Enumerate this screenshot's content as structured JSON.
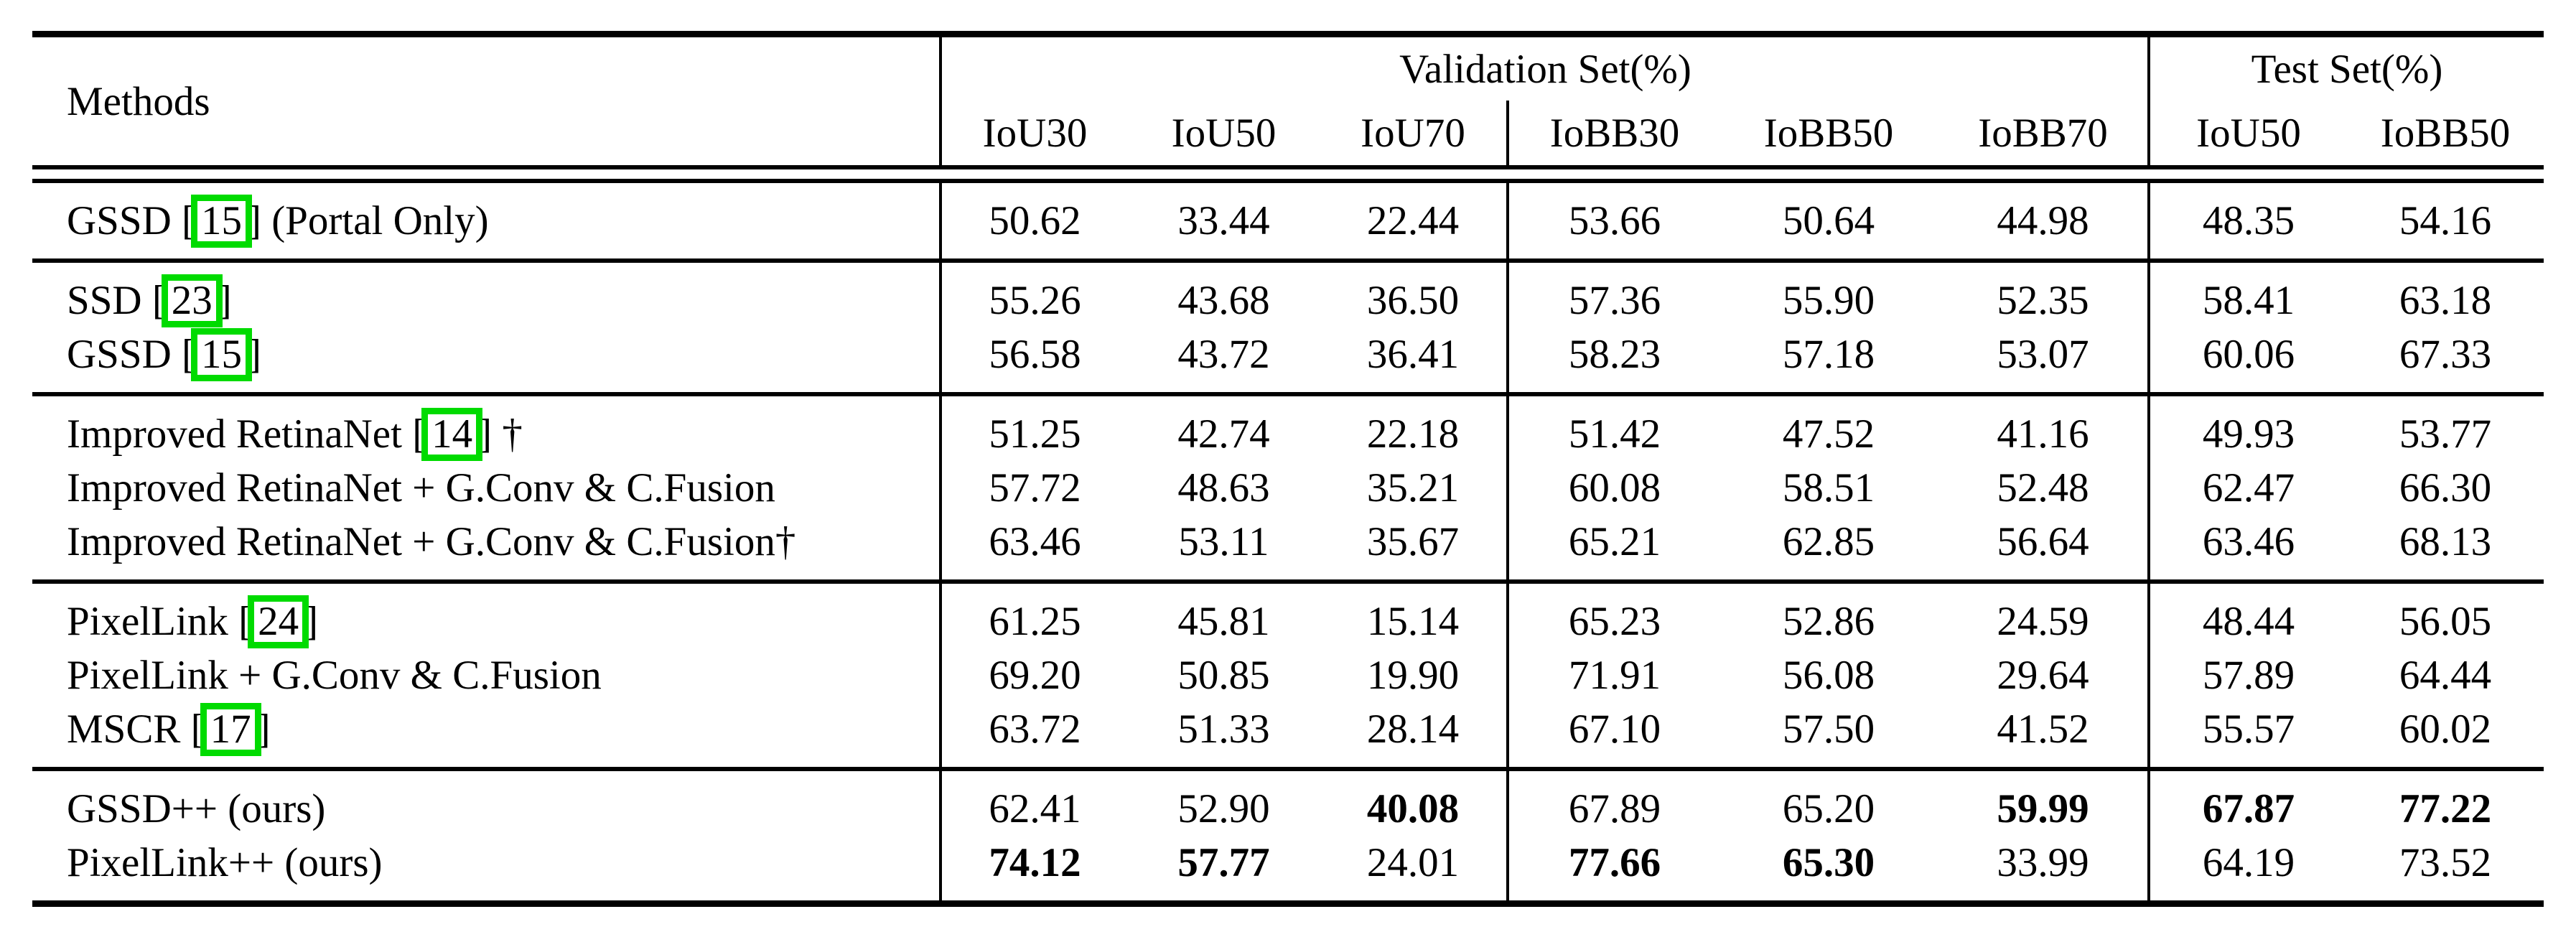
{
  "table": {
    "citation_box_color": "#00DB00",
    "header": {
      "methods_label": "Methods",
      "validation_title": "Validation Set(%)",
      "test_title": "Test Set(%)",
      "val_columns": [
        "IoU30",
        "IoU50",
        "IoU70",
        "IoBB30",
        "IoBB50",
        "IoBB70"
      ],
      "test_columns": [
        "IoU50",
        "IoBB50"
      ]
    },
    "groups": [
      {
        "rows": [
          {
            "label_pre": "GSSD [",
            "cite": "15",
            "label_post": "] (Portal Only)",
            "values": [
              "50.62",
              "33.44",
              "22.44",
              "53.66",
              "50.64",
              "44.98",
              "48.35",
              "54.16"
            ]
          }
        ]
      },
      {
        "rows": [
          {
            "label_pre": "SSD [",
            "cite": "23",
            "label_post": "]",
            "values": [
              "55.26",
              "43.68",
              "36.50",
              "57.36",
              "55.90",
              "52.35",
              "58.41",
              "63.18"
            ]
          },
          {
            "label_pre": "GSSD [",
            "cite": "15",
            "label_post": "]",
            "values": [
              "56.58",
              "43.72",
              "36.41",
              "58.23",
              "57.18",
              "53.07",
              "60.06",
              "67.33"
            ]
          }
        ]
      },
      {
        "rows": [
          {
            "label_pre": "Improved RetinaNet [",
            "cite": "14",
            "label_post": "] †",
            "values": [
              "51.25",
              "42.74",
              "22.18",
              "51.42",
              "47.52",
              "41.16",
              "49.93",
              "53.77"
            ]
          },
          {
            "label_pre": "Improved RetinaNet + G.Conv & C.Fusion",
            "cite": "",
            "label_post": "",
            "values": [
              "57.72",
              "48.63",
              "35.21",
              "60.08",
              "58.51",
              "52.48",
              "62.47",
              "66.30"
            ]
          },
          {
            "label_pre": "Improved RetinaNet + G.Conv & C.Fusion†",
            "cite": "",
            "label_post": "",
            "values": [
              "63.46",
              "53.11",
              "35.67",
              "65.21",
              "62.85",
              "56.64",
              "63.46",
              "68.13"
            ]
          }
        ]
      },
      {
        "rows": [
          {
            "label_pre": "PixelLink [",
            "cite": "24",
            "label_post": "]",
            "values": [
              "61.25",
              "45.81",
              "15.14",
              "65.23",
              "52.86",
              "24.59",
              "48.44",
              "56.05"
            ]
          },
          {
            "label_pre": "PixelLink + G.Conv & C.Fusion",
            "cite": "",
            "label_post": "",
            "values": [
              "69.20",
              "50.85",
              "19.90",
              "71.91",
              "56.08",
              "29.64",
              "57.89",
              "64.44"
            ]
          },
          {
            "label_pre": "MSCR [",
            "cite": "17",
            "label_post": "]",
            "values": [
              "63.72",
              "51.33",
              "28.14",
              "67.10",
              "57.50",
              "41.52",
              "55.57",
              "60.02"
            ]
          }
        ]
      },
      {
        "rows": [
          {
            "label_pre": "GSSD++ (ours)",
            "cite": "",
            "label_post": "",
            "values": [
              "62.41",
              "52.90",
              "40.08",
              "67.89",
              "65.20",
              "59.99",
              "67.87",
              "77.22"
            ],
            "bold": [
              false,
              false,
              true,
              false,
              false,
              true,
              true,
              true
            ]
          },
          {
            "label_pre": "PixelLink++ (ours)",
            "cite": "",
            "label_post": "",
            "values": [
              "74.12",
              "57.77",
              "24.01",
              "77.66",
              "65.30",
              "33.99",
              "64.19",
              "73.52"
            ],
            "bold": [
              true,
              true,
              false,
              true,
              true,
              false,
              false,
              false
            ]
          }
        ]
      }
    ]
  }
}
